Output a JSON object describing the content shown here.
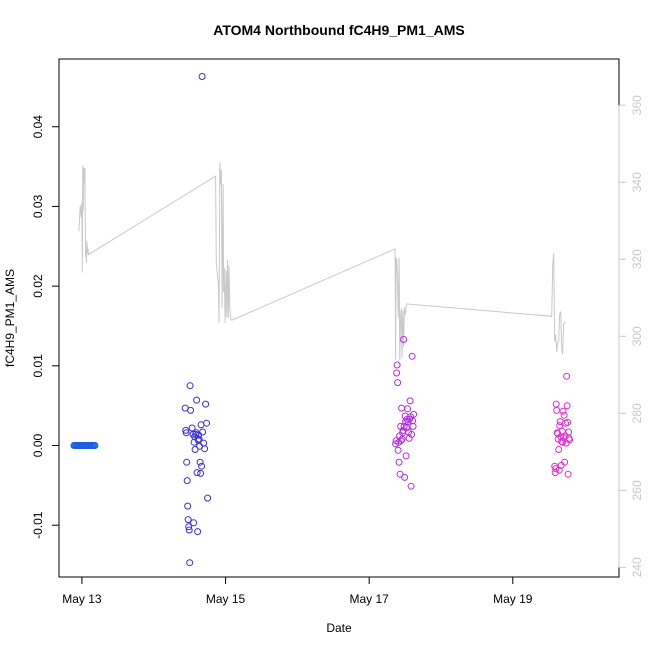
{
  "chart_data": {
    "type": "scatter",
    "title": "ATOM4 Northbound fC4H9_PM1_AMS",
    "xlabel": "Date",
    "ylabel": "fC4H9_PM1_AMS",
    "xlim": [
      "2016-05-12 16:20",
      "2016-05-20 11:30"
    ],
    "ylim": [
      -0.0165,
      0.0485
    ],
    "y2lim": [
      237.5,
      372
    ],
    "x_ticks": [
      {
        "value": "2016-05-13 00:00",
        "label": "May 13"
      },
      {
        "value": "2016-05-15 00:00",
        "label": "May 15"
      },
      {
        "value": "2016-05-17 00:00",
        "label": "May 17"
      },
      {
        "value": "2016-05-19 00:00",
        "label": "May 19"
      }
    ],
    "y_ticks": [
      {
        "value": -0.01,
        "label": "-0.01"
      },
      {
        "value": 0.0,
        "label": "0.00"
      },
      {
        "value": 0.01,
        "label": "0.01"
      },
      {
        "value": 0.02,
        "label": "0.02"
      },
      {
        "value": 0.03,
        "label": "0.03"
      },
      {
        "value": 0.04,
        "label": "0.04"
      }
    ],
    "y2_ticks": [
      {
        "value": 240,
        "label": "240"
      },
      {
        "value": 260,
        "label": "260"
      },
      {
        "value": 280,
        "label": "280"
      },
      {
        "value": 300,
        "label": "300"
      },
      {
        "value": 320,
        "label": "320"
      },
      {
        "value": 340,
        "label": "340"
      },
      {
        "value": 360,
        "label": "360"
      }
    ],
    "grid": false,
    "legend": "none",
    "colors": {
      "line": "#c8c8c8",
      "right_axis": "#c8c8c8",
      "points_may12": "#1a5fe0",
      "points_may14": "#3a2ee0",
      "points_may17": "#b02ee0",
      "points_may19": "#e02ed0"
    },
    "line_series": {
      "x": [
        "2016-05-12 23:00",
        "2016-05-12 23:25",
        "2016-05-12 23:45",
        "2016-05-12 23:57",
        "2016-05-13 00:08",
        "2016-05-13 00:18",
        "2016-05-13 00:28",
        "2016-05-13 00:38",
        "2016-05-13 00:50",
        "2016-05-13 01:00",
        "2016-05-13 01:12",
        "2016-05-13 01:22",
        "2016-05-13 01:30",
        "2016-05-13 01:40",
        "2016-05-13 01:55",
        "2016-05-13 02:05",
        "2016-05-13 02:10",
        "2016-05-14 20:40",
        "2016-05-14 20:55",
        "2016-05-14 21:15",
        "2016-05-14 21:35",
        "2016-05-14 21:50",
        "2016-05-14 22:05",
        "2016-05-14 22:20",
        "2016-05-14 22:35",
        "2016-05-14 22:50",
        "2016-05-14 23:10",
        "2016-05-14 23:20",
        "2016-05-14 23:35",
        "2016-05-14 23:50",
        "2016-05-15 00:10",
        "2016-05-15 00:25",
        "2016-05-15 00:40",
        "2016-05-15 00:55",
        "2016-05-15 01:10",
        "2016-05-15 01:25",
        "2016-05-15 01:45",
        "2016-05-15 02:00",
        "2016-05-15 02:10",
        "2016-05-17 08:40",
        "2016-05-17 08:50",
        "2016-05-17 09:00",
        "2016-05-17 09:15",
        "2016-05-17 09:30",
        "2016-05-17 09:45",
        "2016-05-17 10:00",
        "2016-05-17 10:15",
        "2016-05-17 10:30",
        "2016-05-17 10:45",
        "2016-05-17 11:00",
        "2016-05-17 11:15",
        "2016-05-17 11:30",
        "2016-05-17 11:45",
        "2016-05-17 12:00",
        "2016-05-17 12:15",
        "2016-05-17 12:25",
        "2016-05-19 13:00",
        "2016-05-19 13:20",
        "2016-05-19 13:40",
        "2016-05-19 14:00",
        "2016-05-19 14:20",
        "2016-05-19 14:40",
        "2016-05-19 15:00",
        "2016-05-19 15:20",
        "2016-05-19 15:40",
        "2016-05-19 16:00",
        "2016-05-19 16:20",
        "2016-05-19 16:40",
        "2016-05-19 17:00",
        "2016-05-19 17:20",
        "2016-05-19 17:40"
      ],
      "y": [
        327.3,
        333.9,
        331,
        334.7,
        316.6,
        344.4,
        332.6,
        343.6,
        340,
        343.7,
        320.7,
        322.9,
        319,
        324.8,
        321.5,
        322.7,
        321.2,
        341.6,
        319,
        316.3,
        313.9,
        303.5,
        345.1,
        339.3,
        343.3,
        307.2,
        339.6,
        311.5,
        317.8,
        303.5,
        317.2,
        304.9,
        319.8,
        304.7,
        318.3,
        307.4,
        304.3,
        304.2,
        304.2,
        322.7,
        293.9,
        320.2,
        320,
        313.6,
        304.8,
        320.4,
        293.8,
        305.2,
        307.2,
        294.4,
        306.7,
        297.3,
        307.5,
        305.5,
        306.4,
        308.4,
        305.2,
        318.3,
        321.5,
        298.6,
        300.5,
        295.9,
        298.4,
        298.6,
        305.9,
        306.3,
        296.7,
        295.4,
        303.1,
        303.5,
        303.7
      ]
    },
    "scatter_series": [
      {
        "x": [
          "2016-05-12 21:20",
          "2016-05-12 21:40",
          "2016-05-12 22:00",
          "2016-05-12 22:20",
          "2016-05-12 22:40",
          "2016-05-12 23:00",
          "2016-05-12 23:20",
          "2016-05-12 23:40",
          "2016-05-13 00:00",
          "2016-05-13 00:20",
          "2016-05-13 00:40",
          "2016-05-13 01:00",
          "2016-05-13 01:20",
          "2016-05-13 01:40",
          "2016-05-13 02:00",
          "2016-05-13 02:20",
          "2016-05-13 02:40",
          "2016-05-13 03:00",
          "2016-05-13 03:20",
          "2016-05-13 03:40",
          "2016-05-13 04:00",
          "2016-05-13 04:20"
        ],
        "y": [
          0.0,
          0.0,
          0.0,
          0.0,
          0.0,
          0.0,
          0.0,
          0.0,
          0.0,
          0.0,
          0.0,
          0.0,
          0.0,
          0.0,
          0.0,
          0.0,
          0.0,
          0.0,
          0.0,
          0.0,
          0.0,
          0.0
        ]
      },
      {
        "x": [
          "2016-05-14 10:30",
          "2016-05-14 10:40",
          "2016-05-14 10:50",
          "2016-05-14 11:00",
          "2016-05-14 11:10",
          "2016-05-14 11:20",
          "2016-05-14 11:30",
          "2016-05-14 11:40",
          "2016-05-14 11:50",
          "2016-05-14 12:00",
          "2016-05-14 12:10",
          "2016-05-14 12:20",
          "2016-05-14 12:50",
          "2016-05-14 13:10",
          "2016-05-14 13:20",
          "2016-05-14 13:30",
          "2016-05-14 13:40",
          "2016-05-14 13:50",
          "2016-05-14 14:00",
          "2016-05-14 14:10",
          "2016-05-14 14:20",
          "2016-05-14 14:30",
          "2016-05-14 14:40",
          "2016-05-14 14:50",
          "2016-05-14 15:00",
          "2016-05-14 15:10",
          "2016-05-14 15:20",
          "2016-05-14 15:30",
          "2016-05-14 15:40",
          "2016-05-14 15:50",
          "2016-05-14 16:00",
          "2016-05-14 16:10",
          "2016-05-14 16:20",
          "2016-05-14 16:40",
          "2016-05-14 17:00",
          "2016-05-14 17:20",
          "2016-05-14 17:40",
          "2016-05-14 18:00"
        ],
        "y": [
          0.0047,
          0.0019,
          0.0016,
          -0.0021,
          -0.0044,
          -0.0076,
          -0.0093,
          -0.0102,
          -0.0106,
          -0.0147,
          0.0075,
          0.0044,
          0.0022,
          0.0014,
          -0.0097,
          0.0004,
          0.0011,
          -0.0005,
          0.0014,
          0.0016,
          0.0057,
          -0.0034,
          -0.0108,
          0.0007,
          0.0013,
          0.0008,
          -0.0001,
          -0.0021,
          -0.0035,
          0.0026,
          -0.0026,
          0.0463,
          0.0017,
          0.0003,
          -0.0004,
          0.0052,
          0.0028,
          -0.0066
        ]
      },
      {
        "x": [
          "2016-05-17 08:50",
          "2016-05-17 09:00",
          "2016-05-17 09:10",
          "2016-05-17 09:20",
          "2016-05-17 09:30",
          "2016-05-17 09:40",
          "2016-05-17 09:50",
          "2016-05-17 10:00",
          "2016-05-17 10:10",
          "2016-05-17 10:20",
          "2016-05-17 10:30",
          "2016-05-17 10:40",
          "2016-05-17 10:50",
          "2016-05-17 11:00",
          "2016-05-17 11:10",
          "2016-05-17 11:20",
          "2016-05-17 11:30",
          "2016-05-17 11:40",
          "2016-05-17 11:50",
          "2016-05-17 12:00",
          "2016-05-17 12:10",
          "2016-05-17 12:20",
          "2016-05-17 12:30",
          "2016-05-17 12:40",
          "2016-05-17 12:50",
          "2016-05-17 13:00",
          "2016-05-17 13:10",
          "2016-05-17 13:20",
          "2016-05-17 13:30",
          "2016-05-17 13:40",
          "2016-05-17 13:50",
          "2016-05-17 14:00",
          "2016-05-17 14:10",
          "2016-05-17 14:20",
          "2016-05-17 14:30",
          "2016-05-17 14:40",
          "2016-05-17 14:50"
        ],
        "y": [
          0.0002,
          0.0006,
          0.0091,
          0.0101,
          0.0079,
          -0.0006,
          0.0004,
          -0.0021,
          0.0012,
          -0.0036,
          0.0024,
          0.0006,
          0.0047,
          0.0008,
          0.0016,
          0.0019,
          0.0133,
          0.0024,
          -0.004,
          0.0037,
          0.003,
          -0.0013,
          0.0022,
          0.0033,
          0.0046,
          0.003,
          0.0017,
          0.0009,
          0.0033,
          0.0056,
          0.0036,
          -0.0051,
          0.0014,
          0.0112,
          0.0031,
          0.0024,
          0.0039
        ]
      },
      {
        "x": [
          "2016-05-19 14:00",
          "2016-05-19 14:10",
          "2016-05-19 14:20",
          "2016-05-19 14:30",
          "2016-05-19 14:40",
          "2016-05-19 14:50",
          "2016-05-19 15:00",
          "2016-05-19 15:10",
          "2016-05-19 15:20",
          "2016-05-19 15:30",
          "2016-05-19 15:40",
          "2016-05-19 15:50",
          "2016-05-19 16:00",
          "2016-05-19 16:10",
          "2016-05-19 16:20",
          "2016-05-19 16:30",
          "2016-05-19 16:40",
          "2016-05-19 16:50",
          "2016-05-19 17:00",
          "2016-05-19 17:10",
          "2016-05-19 17:20",
          "2016-05-19 17:30",
          "2016-05-19 17:40",
          "2016-05-19 17:50",
          "2016-05-19 18:00",
          "2016-05-19 18:10",
          "2016-05-19 18:20",
          "2016-05-19 18:30",
          "2016-05-19 18:40",
          "2016-05-19 18:50",
          "2016-05-19 19:00"
        ],
        "y": [
          -0.0026,
          -0.0034,
          -0.0029,
          0.0052,
          0.0044,
          0.0016,
          0.0015,
          0.0008,
          -0.0005,
          -0.0031,
          0.0025,
          0.003,
          0.0011,
          -0.0025,
          0.0005,
          0.0018,
          0.0004,
          0.0043,
          0.001,
          0.0038,
          -0.0021,
          0.0012,
          0.0028,
          0.0003,
          0.0087,
          0.005,
          0.0029,
          -0.0036,
          0.0017,
          0.0009,
          0.0007
        ]
      }
    ]
  }
}
